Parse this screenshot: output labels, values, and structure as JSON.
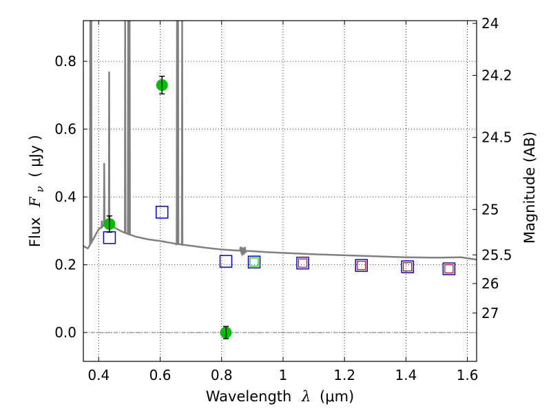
{
  "chart_data": {
    "type": "scatter",
    "xlabel": {
      "prefix": "Wavelength",
      "symbol": "λ",
      "unit": "(μm)"
    },
    "ylabel": {
      "prefix": "Flux",
      "symbol": "F",
      "subscript": "ν",
      "unit": "( μJy )"
    },
    "y2label": "Magnitude (AB)",
    "xlim": [
      0.35,
      1.63
    ],
    "ylim": [
      -0.085,
      0.92
    ],
    "xticks": [
      0.4,
      0.6,
      0.8,
      1.0,
      1.2,
      1.4,
      1.6
    ],
    "xtick_labels": [
      "0.4",
      "0.6",
      "0.8",
      "1",
      "1.2",
      "1.4",
      "1.6"
    ],
    "yticks": [
      0.0,
      0.2,
      0.4,
      0.6,
      0.8
    ],
    "ytick_labels": [
      "0.0",
      "0.2",
      "0.4",
      "0.6",
      "0.8"
    ],
    "y2ticks": [
      {
        "label": "24",
        "mag": 24.0
      },
      {
        "label": "24.2",
        "mag": 24.2
      },
      {
        "label": "24.5",
        "mag": 24.5
      },
      {
        "label": "25",
        "mag": 25.0
      },
      {
        "label": "25.5",
        "mag": 25.5
      },
      {
        "label": "26",
        "mag": 26.0
      },
      {
        "label": "27",
        "mag": 27.0
      }
    ],
    "grid": true,
    "zero_line": 0.0,
    "series": [
      {
        "kind": "template_spectrum",
        "color": "#808080",
        "continuum": [
          [
            0.35,
            0.255
          ],
          [
            0.365,
            0.248
          ],
          [
            0.38,
            0.272
          ],
          [
            0.4,
            0.305
          ],
          [
            0.42,
            0.318
          ],
          [
            0.45,
            0.31
          ],
          [
            0.48,
            0.296
          ],
          [
            0.52,
            0.283
          ],
          [
            0.56,
            0.275
          ],
          [
            0.6,
            0.27
          ],
          [
            0.65,
            0.262
          ],
          [
            0.7,
            0.256
          ],
          [
            0.75,
            0.25
          ],
          [
            0.8,
            0.245
          ],
          [
            0.85,
            0.242
          ],
          [
            0.9,
            0.24
          ],
          [
            0.95,
            0.237
          ],
          [
            1.0,
            0.235
          ],
          [
            1.1,
            0.231
          ],
          [
            1.2,
            0.228
          ],
          [
            1.3,
            0.225
          ],
          [
            1.4,
            0.222
          ],
          [
            1.5,
            0.221
          ],
          [
            1.58,
            0.222
          ],
          [
            1.63,
            0.215
          ]
        ],
        "lines": [
          {
            "x": 0.3727,
            "peak": 0.92
          },
          {
            "x": 0.376,
            "peak": 0.92
          },
          {
            "x": 0.4102,
            "peak": 0.33
          },
          {
            "x": 0.418,
            "peak": 0.5
          },
          {
            "x": 0.434,
            "peak": 0.77
          },
          {
            "x": 0.4861,
            "peak": 0.92
          },
          {
            "x": 0.4959,
            "peak": 0.92
          },
          {
            "x": 0.5007,
            "peak": 0.92
          },
          {
            "x": 0.6548,
            "peak": 0.92
          },
          {
            "x": 0.6563,
            "peak": 0.92
          },
          {
            "x": 0.6583,
            "peak": 0.92
          },
          {
            "x": 0.6716,
            "peak": 0.92
          }
        ],
        "absorption_x": [
          0.86,
          0.88
        ]
      },
      {
        "kind": "observed",
        "color": "#00c000",
        "points": [
          {
            "x": 0.435,
            "y": 0.32,
            "err": 0.024
          },
          {
            "x": 0.606,
            "y": 0.73,
            "err": 0.026
          },
          {
            "x": 0.814,
            "y": 0.0,
            "err": 0.018
          }
        ]
      },
      {
        "kind": "model_blue",
        "color": "#0000dd",
        "points": [
          {
            "x": 0.435,
            "y": 0.28
          },
          {
            "x": 0.606,
            "y": 0.355
          },
          {
            "x": 0.814,
            "y": 0.21
          },
          {
            "x": 0.906,
            "y": 0.208
          },
          {
            "x": 1.064,
            "y": 0.205
          },
          {
            "x": 1.255,
            "y": 0.198
          },
          {
            "x": 1.405,
            "y": 0.194
          },
          {
            "x": 1.54,
            "y": 0.188
          }
        ]
      },
      {
        "kind": "model_green",
        "color": "#00c000",
        "points": [
          {
            "x": 0.906,
            "y": 0.208
          }
        ]
      },
      {
        "kind": "model_red",
        "color": "#dd0000",
        "points": [
          {
            "x": 1.064,
            "y": 0.205
          },
          {
            "x": 1.255,
            "y": 0.198
          },
          {
            "x": 1.405,
            "y": 0.194
          },
          {
            "x": 1.54,
            "y": 0.188
          }
        ]
      }
    ]
  }
}
